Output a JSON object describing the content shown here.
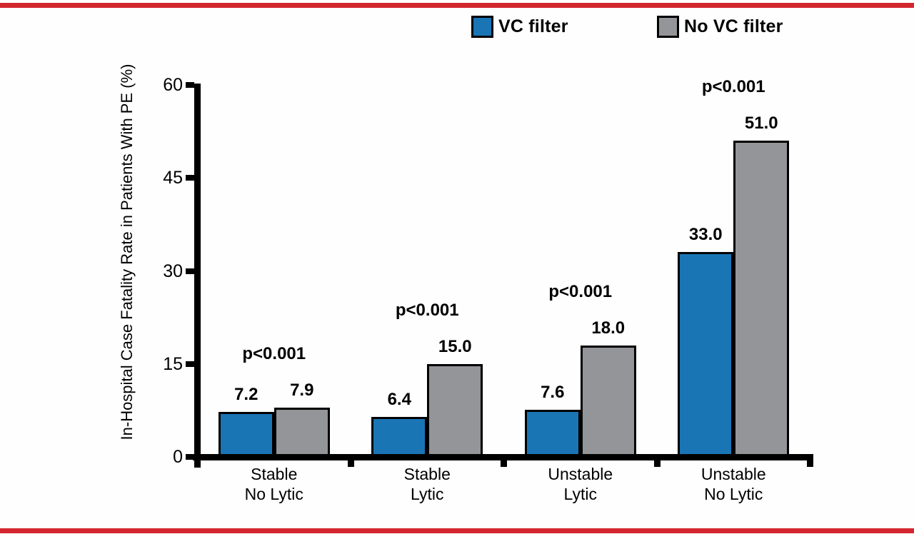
{
  "figure": {
    "background": "#fefefe",
    "rule_color": "#d4262e",
    "axis_color": "#000000"
  },
  "legend": {
    "position": "top",
    "items": [
      {
        "label": "VC filter",
        "color": "#1a75b5",
        "icon": "blue-square-swatch"
      },
      {
        "label": "No VC filter",
        "color": "#949599",
        "icon": "gray-square-swatch"
      }
    ]
  },
  "chart_data": {
    "type": "bar",
    "title": "",
    "xlabel": "",
    "ylabel": "In-Hospital Case Fatality Rate in Patients With PE (%)",
    "ylim": [
      0,
      60
    ],
    "yticks": [
      "0",
      "15",
      "30",
      "45",
      "60"
    ],
    "ytick_values": [
      0,
      15,
      30,
      45,
      60
    ],
    "grid": false,
    "legend_position": "top",
    "categories": [
      {
        "line1": "Stable",
        "line2": "No Lytic"
      },
      {
        "line1": "Stable",
        "line2": "Lytic"
      },
      {
        "line1": "Unstable",
        "line2": "Lytic"
      },
      {
        "line1": "Unstable",
        "line2": "No Lytic"
      }
    ],
    "series": [
      {
        "name": "VC filter",
        "color": "#1a75b5",
        "values": [
          7.2,
          6.4,
          7.6,
          33.0
        ],
        "value_labels": [
          "7.2",
          "6.4",
          "7.6",
          "33.0"
        ]
      },
      {
        "name": "No VC filter",
        "color": "#949599",
        "values": [
          7.9,
          15.0,
          18.0,
          51.0
        ],
        "value_labels": [
          "7.9",
          "15.0",
          "18.0",
          "51.0"
        ]
      }
    ],
    "annotations": {
      "p_values": [
        "p<0.001",
        "p<0.001",
        "p<0.001",
        "p<0.001"
      ]
    }
  }
}
